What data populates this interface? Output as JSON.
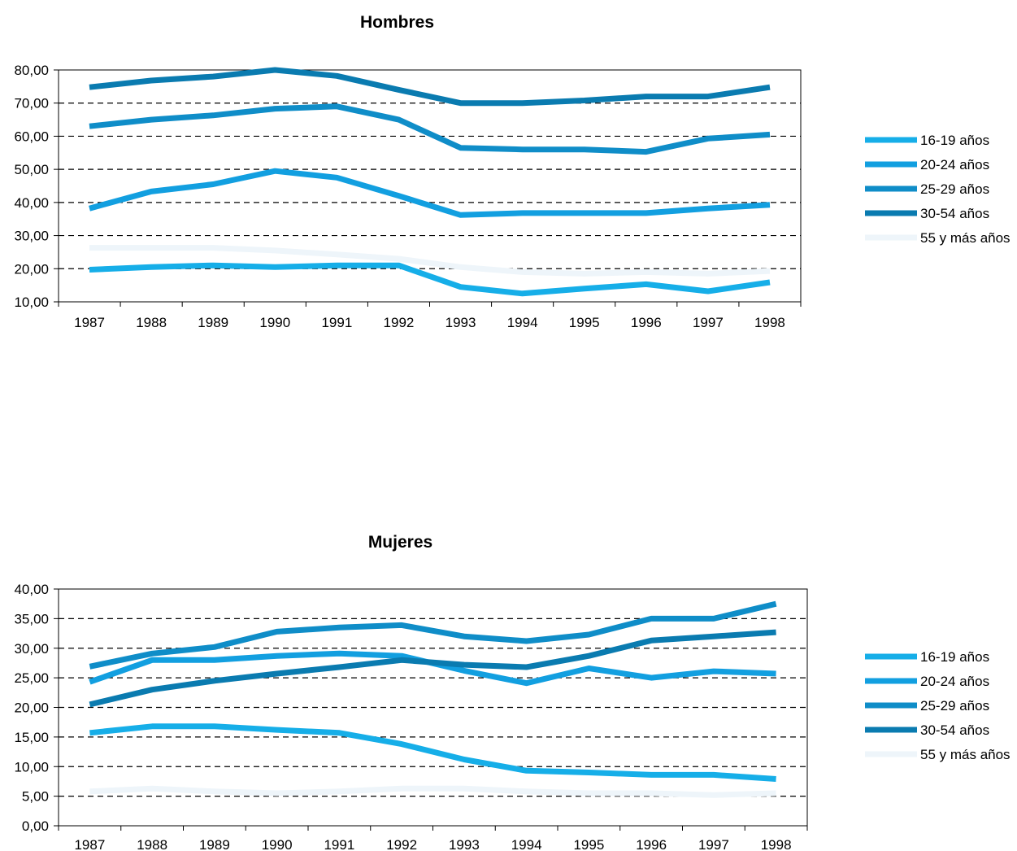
{
  "chart_data": [
    {
      "type": "line",
      "title": "Hombres",
      "categories": [
        "1987",
        "1988",
        "1989",
        "1990",
        "1991",
        "1992",
        "1993",
        "1994",
        "1995",
        "1996",
        "1997",
        "1998"
      ],
      "ylim": [
        10,
        80
      ],
      "yticks": [
        "10,00",
        "20,00",
        "30,00",
        "40,00",
        "50,00",
        "60,00",
        "70,00",
        "80,00"
      ],
      "grid": "dashed horizontal",
      "legend": "right",
      "series": [
        {
          "name": "16-19 años",
          "color": "#16aee8",
          "values": [
            19.7,
            20.5,
            21.0,
            20.5,
            21.0,
            21.0,
            14.5,
            12.5,
            14.0,
            15.3,
            13.2,
            15.9
          ]
        },
        {
          "name": "20-24 años",
          "color": "#129fe0",
          "values": [
            38.2,
            43.3,
            45.5,
            49.5,
            47.5,
            42.0,
            36.2,
            36.8,
            36.8,
            36.8,
            38.2,
            39.3
          ]
        },
        {
          "name": "25-29 años",
          "color": "#0f8dc8",
          "values": [
            63.0,
            65.0,
            66.3,
            68.3,
            69.0,
            65.0,
            56.5,
            56.0,
            56.0,
            55.3,
            59.3,
            60.5
          ]
        },
        {
          "name": "30-54 años",
          "color": "#0a7bb0",
          "values": [
            74.8,
            76.8,
            78.0,
            80.0,
            78.2,
            74.0,
            70.0,
            70.0,
            70.8,
            72.0,
            72.0,
            74.8
          ]
        },
        {
          "name": "55 y más años",
          "color": "#eef5fa",
          "values": [
            26.3,
            26.3,
            26.3,
            25.5,
            24.3,
            23.0,
            20.5,
            19.0,
            18.5,
            19.0,
            18.5,
            19.3
          ]
        }
      ]
    },
    {
      "type": "line",
      "title": "Mujeres",
      "categories": [
        "1987",
        "1988",
        "1989",
        "1990",
        "1991",
        "1992",
        "1993",
        "1994",
        "1995",
        "1996",
        "1997",
        "1998"
      ],
      "ylim": [
        0,
        40
      ],
      "yticks": [
        "0,00",
        "5,00",
        "10,00",
        "15,00",
        "20,00",
        "25,00",
        "30,00",
        "35,00",
        "40,00"
      ],
      "grid": "dashed horizontal",
      "legend": "right",
      "series": [
        {
          "name": "16-19 años",
          "color": "#16aee8",
          "values": [
            15.7,
            16.8,
            16.8,
            16.2,
            15.7,
            13.8,
            11.2,
            9.3,
            9.0,
            8.6,
            8.6,
            7.9
          ]
        },
        {
          "name": "20-24 años",
          "color": "#129fe0",
          "values": [
            24.3,
            28.0,
            28.0,
            28.7,
            29.1,
            28.7,
            26.2,
            24.1,
            26.6,
            25.0,
            26.1,
            25.7
          ]
        },
        {
          "name": "25-29 años",
          "color": "#0f8dc8",
          "values": [
            26.9,
            29.1,
            30.2,
            32.8,
            33.5,
            33.9,
            32.0,
            31.2,
            32.3,
            35.0,
            35.0,
            37.5
          ]
        },
        {
          "name": "30-54 años",
          "color": "#0a7bb0",
          "values": [
            20.5,
            23.0,
            24.5,
            25.7,
            26.8,
            28.0,
            27.2,
            26.8,
            28.7,
            31.3,
            32.0,
            32.7
          ]
        },
        {
          "name": "55 y más años",
          "color": "#eef5fa",
          "values": [
            5.8,
            6.3,
            5.8,
            5.5,
            5.8,
            6.3,
            6.3,
            5.8,
            5.5,
            5.5,
            5.2,
            5.5
          ]
        }
      ]
    }
  ]
}
